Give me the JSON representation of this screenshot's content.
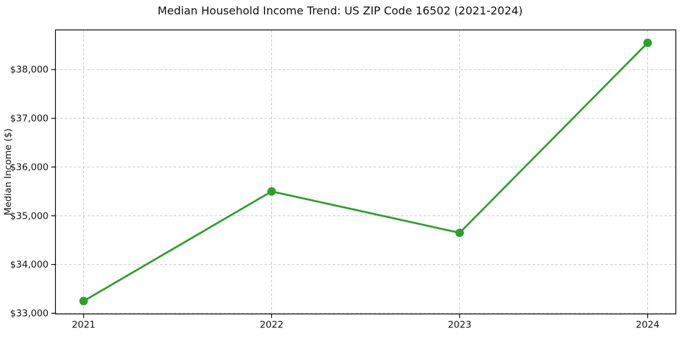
{
  "chart_data": {
    "type": "line",
    "title": "Median Household Income Trend: US ZIP Code 16502 (2021-2024)",
    "xlabel": "",
    "ylabel": "Median Income ($)",
    "x": [
      2021,
      2022,
      2023,
      2024
    ],
    "x_tick_labels": [
      "2021",
      "2022",
      "2023",
      "2024"
    ],
    "series": [
      {
        "name": "median-income",
        "values": [
          33250,
          35500,
          34650,
          38550
        ],
        "color": "#2ca02c",
        "marker": "circle",
        "line_width": 2.8,
        "marker_radius": 6.2
      }
    ],
    "y_ticks": [
      33000,
      34000,
      35000,
      36000,
      37000,
      38000
    ],
    "y_tick_labels": [
      "$33,000",
      "$34,000",
      "$35,000",
      "$36,000",
      "$37,000",
      "$38,000"
    ],
    "xlim": [
      2020.85,
      2024.15
    ],
    "ylim": [
      32985,
      38815
    ],
    "grid": "dashed",
    "grid_color": "#cbcbcb",
    "legend": "none",
    "background": "#ffffff"
  }
}
